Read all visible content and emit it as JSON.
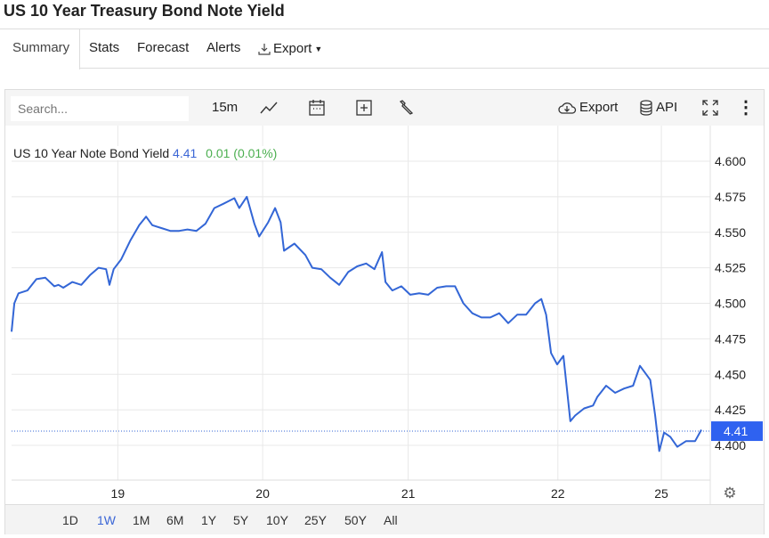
{
  "title": "US 10 Year Treasury Bond Note Yield",
  "tabs": [
    {
      "label": "Summary",
      "active": true
    },
    {
      "label": "Stats"
    },
    {
      "label": "Forecast"
    },
    {
      "label": "Alerts"
    },
    {
      "label": "Export"
    }
  ],
  "toolbar": {
    "search_placeholder": "Search...",
    "interval": "15m",
    "export_label": "Export",
    "api_label": "API"
  },
  "legend": {
    "name": "US 10 Year Note Bond Yield",
    "price": "4.41",
    "change": "0.01 (0.01%)"
  },
  "ranges": [
    "1D",
    "1W",
    "1M",
    "6M",
    "1Y",
    "5Y",
    "10Y",
    "25Y",
    "50Y",
    "All"
  ],
  "active_range": "1W",
  "colors": {
    "line": "#3366d6",
    "accent": "#3b66d6",
    "up": "#4caf50",
    "price_tag": "#2f62f0"
  },
  "chart_data": {
    "type": "line",
    "title": "US 10 Year Note Bond Yield",
    "xlabel": "",
    "ylabel": "",
    "xlim": [
      0,
      100
    ],
    "ylim": [
      4.375,
      4.625
    ],
    "y_ticks": [
      "4.600",
      "4.575",
      "4.550",
      "4.525",
      "4.500",
      "4.475",
      "4.450",
      "4.425",
      "4.400"
    ],
    "x_ticks": [
      {
        "label": "19",
        "x": 15.4
      },
      {
        "label": "20",
        "x": 36.4
      },
      {
        "label": "21",
        "x": 57.5
      },
      {
        "label": "22",
        "x": 79.2
      },
      {
        "label": "25",
        "x": 94.2
      }
    ],
    "last_value": "4.41",
    "grid": true,
    "x": [
      0,
      0.4,
      1.0,
      2.3,
      3.6,
      4.9,
      6.2,
      6.8,
      7.5,
      8.8,
      10.1,
      11.4,
      12.6,
      13.7,
      14.2,
      14.8,
      15.9,
      17.2,
      18.5,
      19.5,
      20.4,
      21.7,
      23.0,
      24.3,
      25.5,
      26.8,
      28.1,
      29.4,
      30.7,
      32.3,
      33.0,
      34.1,
      35.2,
      35.9,
      37.2,
      38.2,
      39.0,
      39.5,
      41.0,
      42.6,
      43.6,
      44.9,
      46.2,
      47.5,
      48.8,
      50.1,
      51.4,
      52.6,
      53.7,
      54.2,
      55.2,
      56.5,
      57.8,
      59.1,
      60.4,
      61.7,
      63.0,
      64.3,
      65.5,
      66.8,
      68.1,
      69.4,
      70.7,
      72.0,
      73.3,
      74.6,
      75.9,
      76.8,
      77.5,
      78.2,
      79.1,
      80.0,
      81.0,
      81.7,
      83.0,
      84.3,
      84.9,
      86.2,
      87.5,
      88.8,
      90.1,
      91.1,
      92.0,
      92.6,
      93.3,
      93.9,
      94.6,
      95.5,
      96.5,
      97.8,
      99.1,
      100
    ],
    "values": [
      4.48,
      4.5,
      4.507,
      4.509,
      4.517,
      4.518,
      4.512,
      4.513,
      4.511,
      4.515,
      4.513,
      4.52,
      4.525,
      4.524,
      4.513,
      4.524,
      4.531,
      4.544,
      4.555,
      4.561,
      4.555,
      4.553,
      4.551,
      4.551,
      4.552,
      4.551,
      4.556,
      4.567,
      4.57,
      4.574,
      4.567,
      4.575,
      4.556,
      4.547,
      4.557,
      4.567,
      4.557,
      4.537,
      4.542,
      4.534,
      4.525,
      4.524,
      4.518,
      4.513,
      4.522,
      4.526,
      4.528,
      4.524,
      4.536,
      4.515,
      4.509,
      4.512,
      4.506,
      4.507,
      4.506,
      4.511,
      4.512,
      4.512,
      4.5,
      4.493,
      4.49,
      4.49,
      4.493,
      4.486,
      4.492,
      4.492,
      4.5,
      4.503,
      4.492,
      4.465,
      4.457,
      4.463,
      4.417,
      4.421,
      4.426,
      4.428,
      4.434,
      4.442,
      4.437,
      4.44,
      4.442,
      4.456,
      4.45,
      4.446,
      4.421,
      4.396,
      4.409,
      4.406,
      4.399,
      4.403,
      4.403,
      4.411
    ]
  }
}
